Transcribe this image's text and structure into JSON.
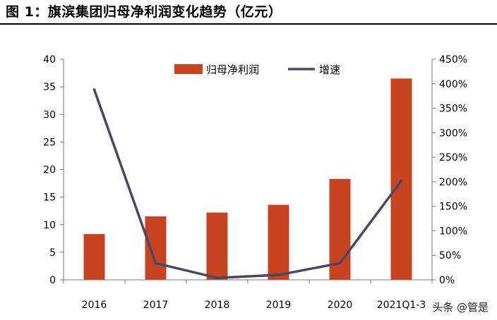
{
  "title": "图 1：旗滨集团归母净利润变化趋势（亿元）",
  "watermark": "头条 @管是",
  "chart_data": {
    "type": "bar",
    "categories": [
      "2016",
      "2017",
      "2018",
      "2019",
      "2020",
      "2021Q1-3"
    ],
    "series": [
      {
        "name": "归母净利润",
        "type": "bar",
        "axis": "left",
        "color": "#C8431F",
        "values": [
          8.3,
          11.5,
          12.2,
          13.6,
          18.3,
          36.5
        ]
      },
      {
        "name": "增速",
        "type": "line",
        "axis": "right",
        "color": "#4A4766",
        "values": [
          3.88,
          0.34,
          0.04,
          0.1,
          0.34,
          2.02
        ]
      }
    ],
    "y_left": {
      "min": 0,
      "max": 40,
      "ticks": [
        0,
        5,
        10,
        15,
        20,
        25,
        30,
        35,
        40
      ]
    },
    "y_right": {
      "min": 0,
      "max": 4.5,
      "ticks": [
        0,
        0.5,
        1,
        1.5,
        2,
        2.5,
        3,
        3.5,
        4,
        4.5
      ],
      "tick_labels": [
        "0%",
        "50%",
        "100%",
        "150%",
        "200%",
        "250%",
        "300%",
        "350%",
        "400%",
        "450%"
      ]
    },
    "legend": {
      "placement": "top-center",
      "labels": [
        "归母净利润",
        "增速"
      ]
    },
    "grid": false
  }
}
